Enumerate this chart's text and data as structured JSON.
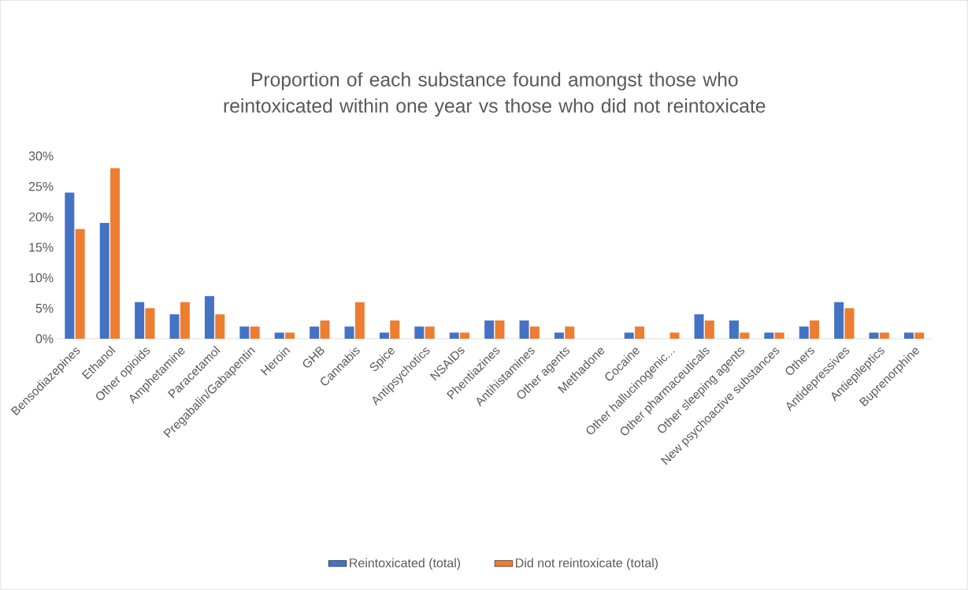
{
  "chart_data": {
    "type": "bar",
    "title": "Proportion of each substance found amongst those who reintoxicated within one year vs those who did not reintoxicate",
    "categories": [
      "Bensodiazepines",
      "Ethanol",
      "Other opioids",
      "Amphetamine",
      "Paracetamol",
      "Pregabalin/Gabapentin",
      "Heroin",
      "GHB",
      "Cannabis",
      "Spice",
      "Antipsychotics",
      "NSAIDs",
      "Phentiazines",
      "Antihistamines",
      "Other agents",
      "Methadone",
      "Cocaine",
      "Other hallucinogenic...",
      "Other pharmaceuticals",
      "Other sleeping agents",
      "New psychoactive substances",
      "Others",
      "Antidepressives",
      "Antiepileptics",
      "Buprenorphine"
    ],
    "series": [
      {
        "name": "Reintoxicated (total)",
        "color": "#4472c4",
        "values": [
          24,
          19,
          6,
          4,
          7,
          2,
          1,
          2,
          2,
          1,
          2,
          1,
          3,
          3,
          1,
          0,
          1,
          0,
          4,
          3,
          1,
          2,
          6,
          1,
          1
        ]
      },
      {
        "name": "Did not reintoxicate (total)",
        "color": "#ed7d31",
        "values": [
          18,
          28,
          5,
          6,
          4,
          2,
          1,
          3,
          6,
          3,
          2,
          1,
          3,
          2,
          2,
          0,
          2,
          1,
          3,
          1,
          1,
          3,
          5,
          1,
          1
        ]
      }
    ],
    "ylim": [
      0,
      30
    ],
    "yticks": [
      {
        "value": 0,
        "label": "0%"
      },
      {
        "value": 5,
        "label": "5%"
      },
      {
        "value": 10,
        "label": "10%"
      },
      {
        "value": 15,
        "label": "15%"
      },
      {
        "value": 20,
        "label": "20%"
      },
      {
        "value": 25,
        "label": "25%"
      },
      {
        "value": 30,
        "label": "30%"
      }
    ],
    "legend": "bottom"
  }
}
